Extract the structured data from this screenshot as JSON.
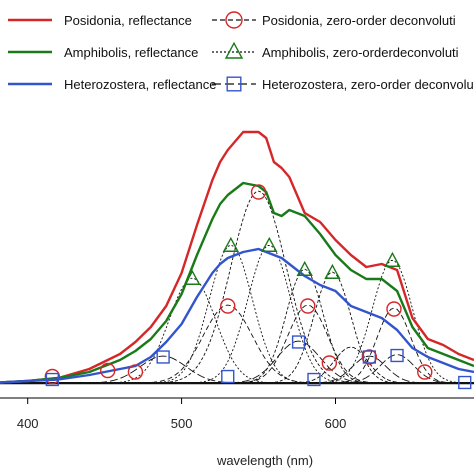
{
  "chart_data": {
    "type": "line",
    "title": "",
    "xlabel": "wavelength (nm)",
    "ylabel": "",
    "x_ticks": [
      400,
      500,
      600
    ],
    "xlim": [
      382,
      690
    ],
    "ylim": [
      0,
      100
    ],
    "grid": false,
    "legend_position": "top",
    "legend": [
      {
        "label": "Posidonia, reflectance",
        "color": "#d62728",
        "style": "solid",
        "marker": "none"
      },
      {
        "label": "Amphibolis, reflectance",
        "color": "#1a7a1a",
        "style": "solid",
        "marker": "none"
      },
      {
        "label": "Heterozostera, reflectance",
        "color": "#3355cc",
        "style": "solid",
        "marker": "none"
      },
      {
        "label": "Posidonia, zero-order deconvoluti",
        "color": "#d62728",
        "style": "dashed",
        "marker": "circle"
      },
      {
        "label": "Amphibolis, zero-orderdeconvoluti",
        "color": "#1a7a1a",
        "style": "dotted",
        "marker": "triangle"
      },
      {
        "label": "Heterozostera, zero-order deconvolu",
        "color": "#3355cc",
        "style": "longdash",
        "marker": "square"
      }
    ],
    "series": [
      {
        "name": "Posidonia, reflectance",
        "color": "#d62728",
        "x": [
          382,
          400,
          420,
          440,
          460,
          470,
          480,
          490,
          500,
          510,
          520,
          525,
          530,
          540,
          550,
          555,
          560,
          565,
          570,
          580,
          590,
          600,
          610,
          620,
          630,
          640,
          650,
          660,
          670,
          680,
          690
        ],
        "y": [
          0.5,
          1,
          2,
          5,
          10,
          14,
          19,
          26,
          37,
          53,
          68,
          74,
          78,
          84,
          84,
          82,
          74,
          72,
          69,
          57,
          54,
          48,
          43,
          39,
          40,
          38,
          22,
          15,
          13,
          10,
          8
        ]
      },
      {
        "name": "Amphibolis, reflectance",
        "color": "#1a7a1a",
        "x": [
          382,
          400,
          420,
          440,
          460,
          470,
          480,
          490,
          500,
          510,
          520,
          525,
          530,
          540,
          550,
          555,
          560,
          565,
          570,
          580,
          590,
          600,
          610,
          620,
          630,
          640,
          650,
          660,
          670,
          680,
          690
        ],
        "y": [
          0.5,
          1,
          2,
          4,
          8,
          11,
          15,
          21,
          30,
          43,
          55,
          60,
          63,
          67,
          66,
          64,
          57,
          56,
          58,
          56,
          50,
          43,
          38,
          35,
          35,
          31,
          19,
          12,
          10,
          8,
          6
        ]
      },
      {
        "name": "Heterozostera, reflectance",
        "color": "#3355cc",
        "x": [
          382,
          400,
          420,
          440,
          460,
          470,
          480,
          490,
          500,
          510,
          520,
          525,
          530,
          540,
          550,
          555,
          560,
          565,
          570,
          580,
          590,
          600,
          610,
          620,
          630,
          640,
          650,
          660,
          670,
          680,
          690
        ],
        "y": [
          0.5,
          1,
          1.5,
          3,
          5,
          6,
          9,
          14,
          20,
          29,
          37,
          40,
          42,
          44,
          45,
          44,
          43,
          42,
          40,
          36,
          33,
          31,
          26,
          24,
          22,
          18,
          12,
          9,
          7,
          5,
          4
        ]
      },
      {
        "name": "Posidonia, zero-order deconvoluti",
        "color": "#d62728",
        "marker": "circle",
        "x": [
          416,
          452,
          470,
          530,
          550,
          582,
          596,
          622,
          638,
          658
        ],
        "y": [
          2.5,
          4.5,
          4,
          26,
          64,
          26,
          7,
          9,
          25,
          4
        ]
      },
      {
        "name": "Amphibolis, zero-orderdeconvoluti",
        "color": "#1a7a1a",
        "marker": "triangle",
        "x": [
          507,
          532,
          557,
          580,
          598,
          637
        ],
        "y": [
          35,
          46,
          46,
          38,
          37,
          41
        ]
      },
      {
        "name": "Heterozostera, zero-order deconvolu",
        "color": "#3355cc",
        "marker": "square",
        "x": [
          416,
          488,
          530,
          576,
          586,
          622,
          640,
          684
        ],
        "y": [
          1.5,
          9,
          2.5,
          14,
          1.5,
          9,
          9.5,
          0.5
        ]
      }
    ]
  }
}
